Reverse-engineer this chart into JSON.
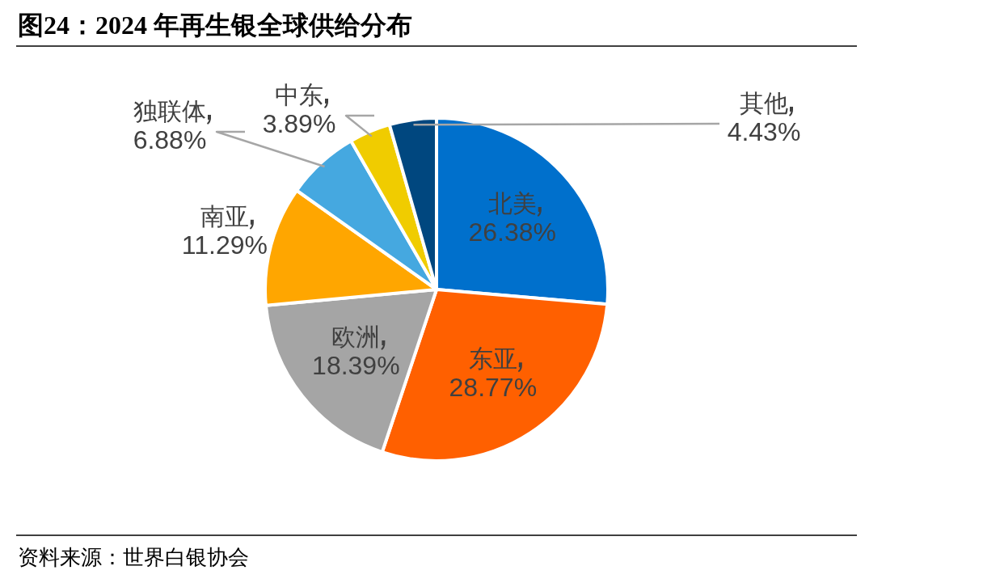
{
  "chart_data": {
    "type": "pie",
    "title": "图24：2024 年再生银全球供给分布",
    "categories": [
      "北美",
      "东亚",
      "欧洲",
      "南亚",
      "独联体",
      "中东",
      "其他"
    ],
    "values": [
      26.38,
      28.77,
      18.39,
      11.29,
      6.88,
      3.89,
      4.43
    ],
    "value_labels": [
      "26.38%",
      "28.77%",
      "18.39%",
      "11.29%",
      "6.88%",
      "3.89%",
      "4.43%"
    ],
    "colors": [
      "#0070cc",
      "#ff6000",
      "#a5a5a5",
      "#ffa600",
      "#45a8e0",
      "#f0cc00",
      "#00477f"
    ],
    "annotations": [
      "资料来源：世界白银协会"
    ]
  }
}
